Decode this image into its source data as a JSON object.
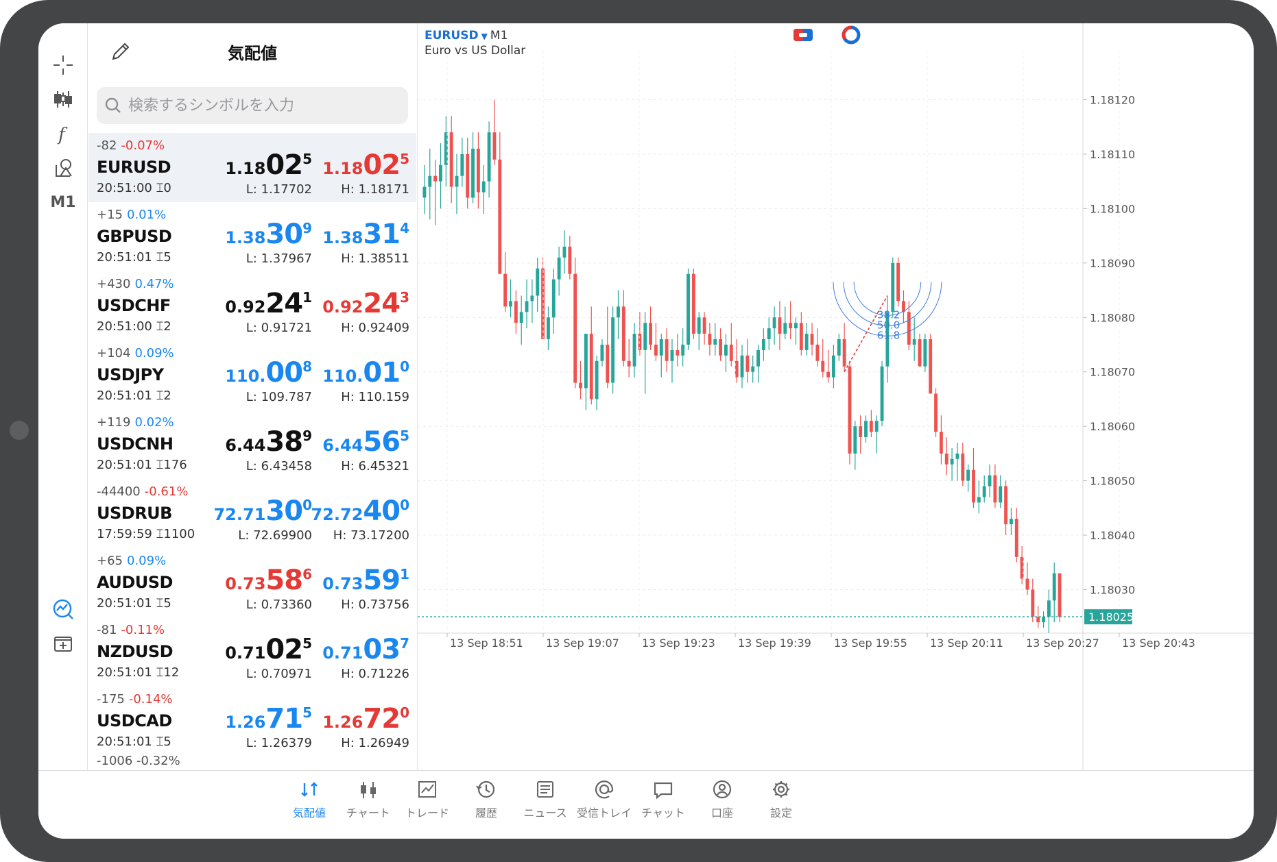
{
  "watchlist": {
    "title": "気配値",
    "search_placeholder": "検索するシンボルを入力",
    "rows": [
      {
        "change_points": "-82",
        "change_pct": "-0.07%",
        "pct_color": "red",
        "symbol": "EURUSD",
        "time": "20:51:00",
        "spread": "0",
        "bid": {
          "small": "1.18",
          "big": "02",
          "sup": "5",
          "color": "black"
        },
        "ask": {
          "small": "1.18",
          "big": "02",
          "sup": "5",
          "color": "red"
        },
        "low": "L: 1.17702",
        "high": "H: 1.18171"
      },
      {
        "change_points": "+15",
        "change_pct": "0.01%",
        "pct_color": "blue",
        "symbol": "GBPUSD",
        "time": "20:51:01",
        "spread": "5",
        "bid": {
          "small": "1.38",
          "big": "30",
          "sup": "9",
          "color": "blue"
        },
        "ask": {
          "small": "1.38",
          "big": "31",
          "sup": "4",
          "color": "blue"
        },
        "low": "L: 1.37967",
        "high": "H: 1.38511"
      },
      {
        "change_points": "+430",
        "change_pct": "0.47%",
        "pct_color": "blue",
        "symbol": "USDCHF",
        "time": "20:51:00",
        "spread": "2",
        "bid": {
          "small": "0.92",
          "big": "24",
          "sup": "1",
          "color": "black"
        },
        "ask": {
          "small": "0.92",
          "big": "24",
          "sup": "3",
          "color": "red"
        },
        "low": "L: 0.91721",
        "high": "H: 0.92409"
      },
      {
        "change_points": "+104",
        "change_pct": "0.09%",
        "pct_color": "blue",
        "symbol": "USDJPY",
        "time": "20:51:01",
        "spread": "2",
        "bid": {
          "small": "110.",
          "big": "00",
          "sup": "8",
          "color": "blue"
        },
        "ask": {
          "small": "110.",
          "big": "01",
          "sup": "0",
          "color": "blue"
        },
        "low": "L: 109.787",
        "high": "H: 110.159"
      },
      {
        "change_points": "+119",
        "change_pct": "0.02%",
        "pct_color": "blue",
        "symbol": "USDCNH",
        "time": "20:51:01",
        "spread": "176",
        "bid": {
          "small": "6.44",
          "big": "38",
          "sup": "9",
          "color": "black"
        },
        "ask": {
          "small": "6.44",
          "big": "56",
          "sup": "5",
          "color": "blue"
        },
        "low": "L: 6.43458",
        "high": "H: 6.45321"
      },
      {
        "change_points": "-44400",
        "change_pct": "-0.61%",
        "pct_color": "red",
        "symbol": "USDRUB",
        "time": "17:59:59",
        "spread": "1100",
        "bid": {
          "small": "72.71",
          "big": "30",
          "sup": "0",
          "color": "blue"
        },
        "ask": {
          "small": "72.72",
          "big": "40",
          "sup": "0",
          "color": "blue"
        },
        "low": "L: 72.69900",
        "high": "H: 73.17200"
      },
      {
        "change_points": "+65",
        "change_pct": "0.09%",
        "pct_color": "blue",
        "symbol": "AUDUSD",
        "time": "20:51:01",
        "spread": "5",
        "bid": {
          "small": "0.73",
          "big": "58",
          "sup": "6",
          "color": "red"
        },
        "ask": {
          "small": "0.73",
          "big": "59",
          "sup": "1",
          "color": "blue"
        },
        "low": "L: 0.73360",
        "high": "H: 0.73756"
      },
      {
        "change_points": "-81",
        "change_pct": "-0.11%",
        "pct_color": "red",
        "symbol": "NZDUSD",
        "time": "20:51:01",
        "spread": "12",
        "bid": {
          "small": "0.71",
          "big": "02",
          "sup": "5",
          "color": "black"
        },
        "ask": {
          "small": "0.71",
          "big": "03",
          "sup": "7",
          "color": "blue"
        },
        "low": "L: 0.70971",
        "high": "H: 0.71226"
      },
      {
        "change_points": "-175",
        "change_pct": "-0.14%",
        "pct_color": "red",
        "symbol": "USDCAD",
        "time": "20:51:01",
        "spread": "5",
        "bid": {
          "small": "1.26",
          "big": "71",
          "sup": "5",
          "color": "blue"
        },
        "ask": {
          "small": "1.26",
          "big": "72",
          "sup": "0",
          "color": "red"
        },
        "low": "L: 1.26379",
        "high": "H: 1.26949"
      }
    ],
    "partial_row_text": "-1006 -0.32%"
  },
  "toolbar": {
    "timeframe_label": "M1"
  },
  "chart": {
    "symbol": "EURUSD",
    "timeframe": "M1",
    "description": "Euro vs US Dollar",
    "current_price": "1.18025",
    "fib_labels": [
      "38.2",
      "50.0",
      "61.8"
    ],
    "colors": {
      "up": "#26a69a",
      "down": "#ef5350",
      "fib": "#3d7de0",
      "trend": "#e53935",
      "price_line": "#26a69a"
    }
  },
  "chart_data": {
    "type": "candlestick",
    "title": "",
    "ylim": [
      1.18022,
      1.18129
    ],
    "y_ticks": [
      "1.18120",
      "1.18110",
      "1.18100",
      "1.18090",
      "1.18080",
      "1.18070",
      "1.18060",
      "1.18050",
      "1.18040",
      "1.18030",
      "1.18025"
    ],
    "x_ticks": [
      "13 Sep 18:51",
      "13 Sep 19:07",
      "13 Sep 19:23",
      "13 Sep 19:39",
      "13 Sep 19:55",
      "13 Sep 20:11",
      "13 Sep 20:27",
      "13 Sep 20:43"
    ],
    "ohlc": [
      [
        1.18102,
        1.18108,
        1.18099,
        1.18104
      ],
      [
        1.18104,
        1.18111,
        1.18098,
        1.18106
      ],
      [
        1.18106,
        1.18109,
        1.18097,
        1.18105
      ],
      [
        1.18105,
        1.18112,
        1.181,
        1.18108
      ],
      [
        1.18108,
        1.18117,
        1.18104,
        1.18114
      ],
      [
        1.18114,
        1.18117,
        1.18101,
        1.18104
      ],
      [
        1.18104,
        1.1811,
        1.18099,
        1.18106
      ],
      [
        1.18106,
        1.18113,
        1.18104,
        1.1811
      ],
      [
        1.1811,
        1.18113,
        1.181,
        1.18102
      ],
      [
        1.18102,
        1.18114,
        1.18101,
        1.18111
      ],
      [
        1.18111,
        1.18114,
        1.181,
        1.18103
      ],
      [
        1.18103,
        1.18108,
        1.18099,
        1.18105
      ],
      [
        1.18105,
        1.18116,
        1.18102,
        1.18114
      ],
      [
        1.18114,
        1.1812,
        1.18108,
        1.18109
      ],
      [
        1.18109,
        1.18114,
        1.18088,
        1.18088
      ],
      [
        1.18088,
        1.18092,
        1.18081,
        1.18082
      ],
      [
        1.18082,
        1.18087,
        1.1808,
        1.18083
      ],
      [
        1.18083,
        1.18085,
        1.18077,
        1.18079
      ],
      [
        1.18079,
        1.18084,
        1.18075,
        1.18081
      ],
      [
        1.18081,
        1.18087,
        1.18078,
        1.18083
      ],
      [
        1.18083,
        1.18087,
        1.18079,
        1.18084
      ],
      [
        1.18084,
        1.18091,
        1.18081,
        1.18089
      ],
      [
        1.18089,
        1.18091,
        1.18076,
        1.18076
      ],
      [
        1.18076,
        1.18082,
        1.18074,
        1.1808
      ],
      [
        1.1808,
        1.18089,
        1.18077,
        1.18087
      ],
      [
        1.18087,
        1.18093,
        1.18084,
        1.18091
      ],
      [
        1.18091,
        1.18096,
        1.18088,
        1.18093
      ],
      [
        1.18093,
        1.18095,
        1.18087,
        1.18088
      ],
      [
        1.18088,
        1.18091,
        1.18067,
        1.18068
      ],
      [
        1.18068,
        1.18072,
        1.18065,
        1.18067
      ],
      [
        1.18067,
        1.18077,
        1.18063,
        1.18077
      ],
      [
        1.18077,
        1.18082,
        1.18064,
        1.18065
      ],
      [
        1.18065,
        1.18073,
        1.18063,
        1.18072
      ],
      [
        1.18072,
        1.18076,
        1.18071,
        1.18075
      ],
      [
        1.18075,
        1.18082,
        1.18067,
        1.18068
      ],
      [
        1.18068,
        1.18082,
        1.18066,
        1.1808
      ],
      [
        1.1808,
        1.18085,
        1.18076,
        1.18082
      ],
      [
        1.18082,
        1.18085,
        1.18071,
        1.18072
      ],
      [
        1.18072,
        1.18076,
        1.18069,
        1.18071
      ],
      [
        1.18071,
        1.18079,
        1.18069,
        1.18077
      ],
      [
        1.18077,
        1.18081,
        1.18073,
        1.18074
      ],
      [
        1.18074,
        1.18081,
        1.18066,
        1.18079
      ],
      [
        1.18079,
        1.18082,
        1.18074,
        1.18075
      ],
      [
        1.18075,
        1.18079,
        1.18072,
        1.18073
      ],
      [
        1.18073,
        1.18077,
        1.18069,
        1.18076
      ],
      [
        1.18076,
        1.18078,
        1.1807,
        1.18072
      ],
      [
        1.18072,
        1.18076,
        1.18068,
        1.18074
      ],
      [
        1.18074,
        1.18077,
        1.18071,
        1.18073
      ],
      [
        1.18073,
        1.18078,
        1.18071,
        1.18075
      ],
      [
        1.18075,
        1.18089,
        1.18074,
        1.18088
      ],
      [
        1.18088,
        1.18089,
        1.18076,
        1.18077
      ],
      [
        1.18077,
        1.18081,
        1.18074,
        1.1808
      ],
      [
        1.1808,
        1.18081,
        1.18075,
        1.18077
      ],
      [
        1.18077,
        1.18079,
        1.18073,
        1.18075
      ],
      [
        1.18075,
        1.18079,
        1.18073,
        1.18076
      ],
      [
        1.18076,
        1.18078,
        1.18072,
        1.18073
      ],
      [
        1.18073,
        1.18077,
        1.1807,
        1.18075
      ],
      [
        1.18075,
        1.18079,
        1.18071,
        1.18072
      ],
      [
        1.18072,
        1.18076,
        1.18068,
        1.18069
      ],
      [
        1.18069,
        1.18075,
        1.18067,
        1.18073
      ],
      [
        1.18073,
        1.18076,
        1.18068,
        1.1807
      ],
      [
        1.1807,
        1.18073,
        1.18068,
        1.18071
      ],
      [
        1.18071,
        1.18075,
        1.18068,
        1.18074
      ],
      [
        1.18074,
        1.18078,
        1.18072,
        1.18076
      ],
      [
        1.18076,
        1.1808,
        1.18074,
        1.18078
      ],
      [
        1.18078,
        1.18082,
        1.18075,
        1.1808
      ],
      [
        1.1808,
        1.18083,
        1.18074,
        1.18077
      ],
      [
        1.18077,
        1.18082,
        1.18076,
        1.18079
      ],
      [
        1.18079,
        1.18083,
        1.18076,
        1.18078
      ],
      [
        1.18078,
        1.1808,
        1.18075,
        1.18079
      ],
      [
        1.18079,
        1.18081,
        1.18073,
        1.18074
      ],
      [
        1.18074,
        1.18079,
        1.18073,
        1.18077
      ],
      [
        1.18077,
        1.18079,
        1.18073,
        1.18075
      ],
      [
        1.18075,
        1.18078,
        1.18071,
        1.18072
      ],
      [
        1.18072,
        1.18076,
        1.18069,
        1.1807
      ],
      [
        1.1807,
        1.18074,
        1.18068,
        1.18069
      ],
      [
        1.18069,
        1.18075,
        1.18067,
        1.18073
      ],
      [
        1.18073,
        1.18077,
        1.18072,
        1.18076
      ],
      [
        1.18076,
        1.18079,
        1.1807,
        1.18071
      ],
      [
        1.18071,
        1.18072,
        1.18053,
        1.18055
      ],
      [
        1.18055,
        1.18061,
        1.18052,
        1.1806
      ],
      [
        1.1806,
        1.18062,
        1.18055,
        1.18058
      ],
      [
        1.18058,
        1.18062,
        1.18057,
        1.18061
      ],
      [
        1.18061,
        1.18063,
        1.18058,
        1.18059
      ],
      [
        1.18059,
        1.18062,
        1.18055,
        1.18061
      ],
      [
        1.18061,
        1.18072,
        1.1806,
        1.18071
      ],
      [
        1.18071,
        1.18084,
        1.18068,
        1.18081
      ],
      [
        1.18081,
        1.18091,
        1.1808,
        1.1809
      ],
      [
        1.1809,
        1.18091,
        1.18082,
        1.18083
      ],
      [
        1.18083,
        1.18085,
        1.18079,
        1.18081
      ],
      [
        1.18081,
        1.18083,
        1.18074,
        1.18075
      ],
      [
        1.18075,
        1.1808,
        1.18072,
        1.18076
      ],
      [
        1.18076,
        1.18077,
        1.18071,
        1.18071
      ],
      [
        1.18071,
        1.18077,
        1.1807,
        1.18076
      ],
      [
        1.18076,
        1.18077,
        1.18066,
        1.18066
      ],
      [
        1.18066,
        1.18067,
        1.18058,
        1.18059
      ],
      [
        1.18059,
        1.18062,
        1.18053,
        1.18055
      ],
      [
        1.18055,
        1.18058,
        1.18051,
        1.18053
      ],
      [
        1.18053,
        1.18056,
        1.1805,
        1.18054
      ],
      [
        1.18054,
        1.18057,
        1.1805,
        1.18055
      ],
      [
        1.18055,
        1.18057,
        1.18049,
        1.1805
      ],
      [
        1.1805,
        1.18053,
        1.18048,
        1.18052
      ],
      [
        1.18052,
        1.18056,
        1.18045,
        1.18046
      ],
      [
        1.18046,
        1.1805,
        1.18044,
        1.18047
      ],
      [
        1.18047,
        1.18051,
        1.18046,
        1.18049
      ],
      [
        1.18049,
        1.18053,
        1.18047,
        1.18051
      ],
      [
        1.18051,
        1.18053,
        1.18045,
        1.18046
      ],
      [
        1.18046,
        1.18051,
        1.18045,
        1.18049
      ],
      [
        1.18049,
        1.1805,
        1.1804,
        1.18042
      ],
      [
        1.18042,
        1.18045,
        1.1804,
        1.18043
      ],
      [
        1.18043,
        1.18045,
        1.18035,
        1.18036
      ],
      [
        1.18036,
        1.18038,
        1.18031,
        1.18032
      ],
      [
        1.18032,
        1.18035,
        1.18029,
        1.1803
      ],
      [
        1.1803,
        1.18032,
        1.18024,
        1.18025
      ],
      [
        1.18025,
        1.18027,
        1.18023,
        1.18024
      ],
      [
        1.18024,
        1.18026,
        1.18023,
        1.18025
      ],
      [
        1.18025,
        1.1803,
        1.18022,
        1.18028
      ],
      [
        1.18028,
        1.18035,
        1.18024,
        1.18033
      ],
      [
        1.18033,
        1.18033,
        1.18024,
        1.18025
      ]
    ]
  },
  "tabs": [
    {
      "label": "気配値",
      "active": true,
      "icon": "quotes-icon"
    },
    {
      "label": "チャート",
      "active": false,
      "icon": "chart-icon"
    },
    {
      "label": "トレード",
      "active": false,
      "icon": "trade-icon"
    },
    {
      "label": "履歴",
      "active": false,
      "icon": "history-icon"
    },
    {
      "label": "ニュース",
      "active": false,
      "icon": "news-icon"
    },
    {
      "label": "受信トレイ",
      "active": false,
      "icon": "mailbox-icon"
    },
    {
      "label": "チャット",
      "active": false,
      "icon": "chat-icon"
    },
    {
      "label": "口座",
      "active": false,
      "icon": "account-icon"
    },
    {
      "label": "設定",
      "active": false,
      "icon": "settings-icon"
    }
  ]
}
